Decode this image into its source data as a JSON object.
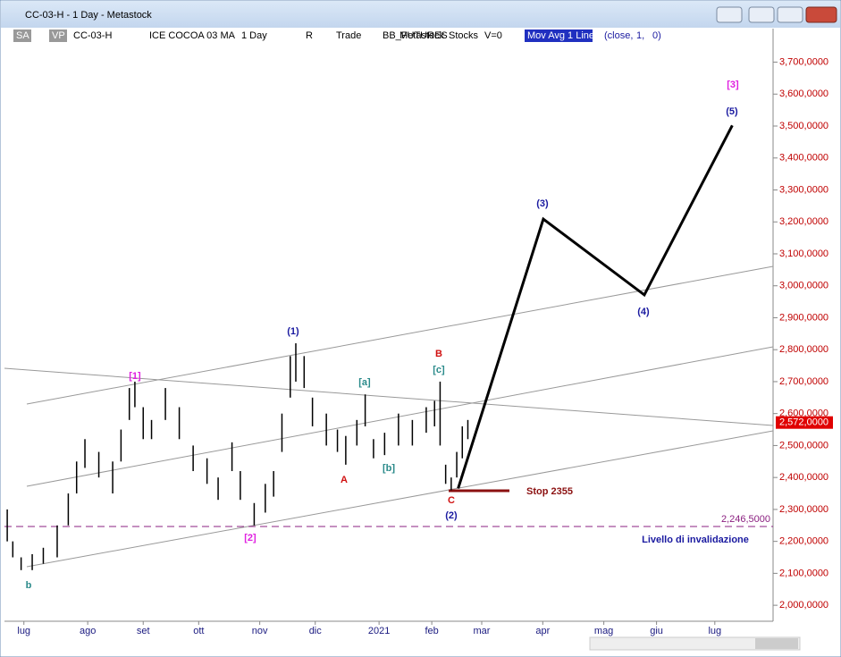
{
  "window": {
    "title": "CC-03-H - 1 Day - Metastock",
    "toolbar": [
      "SA",
      "VP",
      "CC-03-H",
      "ICE COCOA 03 MA",
      "1 Day",
      "R",
      "Trade",
      "BB_FUTURES",
      "Metastock",
      "Stocks",
      "V=0",
      "Mov Avg 1 Line",
      "(close,",
      "1,",
      "0)"
    ]
  },
  "chart_data": {
    "type": "ohlc",
    "bars": {
      "x": [
        1,
        3,
        6,
        10,
        14,
        19,
        23,
        26,
        29,
        34,
        39,
        42,
        45,
        47,
        50,
        53,
        58,
        63,
        68,
        73,
        77,
        82,
        85,
        90,
        94,
        97,
        100,
        103,
        105,
        108,
        111,
        116,
        120,
        123,
        127,
        130,
        133,
        137,
        142,
        147,
        152,
        155,
        157,
        159,
        161,
        163,
        165,
        167
      ],
      "high": [
        2300000,
        2200000,
        2150000,
        2160000,
        2180000,
        2250000,
        2350000,
        2450000,
        2520000,
        2480000,
        2450000,
        2550000,
        2680000,
        2700000,
        2620000,
        2580000,
        2680000,
        2620000,
        2500000,
        2460000,
        2400000,
        2510000,
        2420000,
        2320000,
        2380000,
        2420000,
        2600000,
        2780000,
        2820000,
        2780000,
        2650000,
        2600000,
        2550000,
        2530000,
        2580000,
        2660000,
        2520000,
        2540000,
        2600000,
        2580000,
        2620000,
        2640000,
        2700000,
        2440000,
        2400000,
        2480000,
        2560000,
        2580000
      ],
      "low": [
        2200000,
        2150000,
        2110000,
        2110000,
        2130000,
        2150000,
        2250000,
        2350000,
        2430000,
        2400000,
        2350000,
        2450000,
        2580000,
        2620000,
        2520000,
        2520000,
        2580000,
        2520000,
        2420000,
        2380000,
        2330000,
        2420000,
        2330000,
        2250000,
        2290000,
        2340000,
        2480000,
        2650000,
        2700000,
        2680000,
        2560000,
        2500000,
        2480000,
        2440000,
        2500000,
        2560000,
        2460000,
        2470000,
        2500000,
        2500000,
        2540000,
        2560000,
        2500000,
        2380000,
        2360000,
        2400000,
        2460000,
        2520000
      ],
      "color": "#000000"
    },
    "projection": {
      "x": [
        163.5,
        194.2,
        230.6,
        262.3
      ],
      "values": [
        2365700,
        3208800,
        2971500,
        3502000
      ],
      "color": "#000000"
    },
    "invalidation": {
      "value": 2246500,
      "label": "2,246,5000",
      "color": "#8b2080"
    },
    "last_price": {
      "value": 2572000,
      "label": "2,572,0000",
      "color": "#e00000"
    },
    "xlim": [
      0,
      277
    ],
    "xticks": [
      {
        "value": 7,
        "label": "lug"
      },
      {
        "value": 30,
        "label": "ago"
      },
      {
        "value": 50,
        "label": "set"
      },
      {
        "value": 70,
        "label": "ott"
      },
      {
        "value": 92,
        "label": "nov"
      },
      {
        "value": 112,
        "label": "dic"
      },
      {
        "value": 135,
        "label": "2021"
      },
      {
        "value": 154,
        "label": "feb"
      },
      {
        "value": 172,
        "label": "mar"
      },
      {
        "value": 194,
        "label": "apr"
      },
      {
        "value": 216,
        "label": "mag"
      },
      {
        "value": 235,
        "label": "giu"
      },
      {
        "value": 256,
        "label": "lug"
      }
    ],
    "ylim": [
      1950000,
      3805000
    ],
    "yticks": [
      {
        "value": 2000000,
        "label": "2,000,0000"
      },
      {
        "value": 2100000,
        "label": "2,100,0000"
      },
      {
        "value": 2200000,
        "label": "2,200,0000"
      },
      {
        "value": 2300000,
        "label": "2,300,0000"
      },
      {
        "value": 2400000,
        "label": "2,400,0000"
      },
      {
        "value": 2500000,
        "label": "2,500,0000"
      },
      {
        "value": 2600000,
        "label": "2,600,0000"
      },
      {
        "value": 2700000,
        "label": "2,700,0000"
      },
      {
        "value": 2800000,
        "label": "2,800,0000"
      },
      {
        "value": 2900000,
        "label": "2,900,0000"
      },
      {
        "value": 3000000,
        "label": "3,000,0000"
      },
      {
        "value": 3100000,
        "label": "3,100,0000"
      },
      {
        "value": 3200000,
        "label": "3,200,0000"
      },
      {
        "value": 3300000,
        "label": "3,300,0000"
      },
      {
        "value": 3400000,
        "label": "3,400,0000"
      },
      {
        "value": 3500000,
        "label": "3,500,0000"
      },
      {
        "value": 3600000,
        "label": "3,600,0000"
      },
      {
        "value": 3700000,
        "label": "3,700,0000"
      }
    ],
    "annotations": [
      "[3]",
      "(5)",
      "(3)",
      "(4)",
      "(1)",
      "B",
      "[c]",
      "[a]",
      "[1]",
      "A",
      "[b]",
      "C",
      "(2)",
      "[2]",
      "b",
      "Stop 2355",
      "Livello di invalidazione"
    ]
  }
}
